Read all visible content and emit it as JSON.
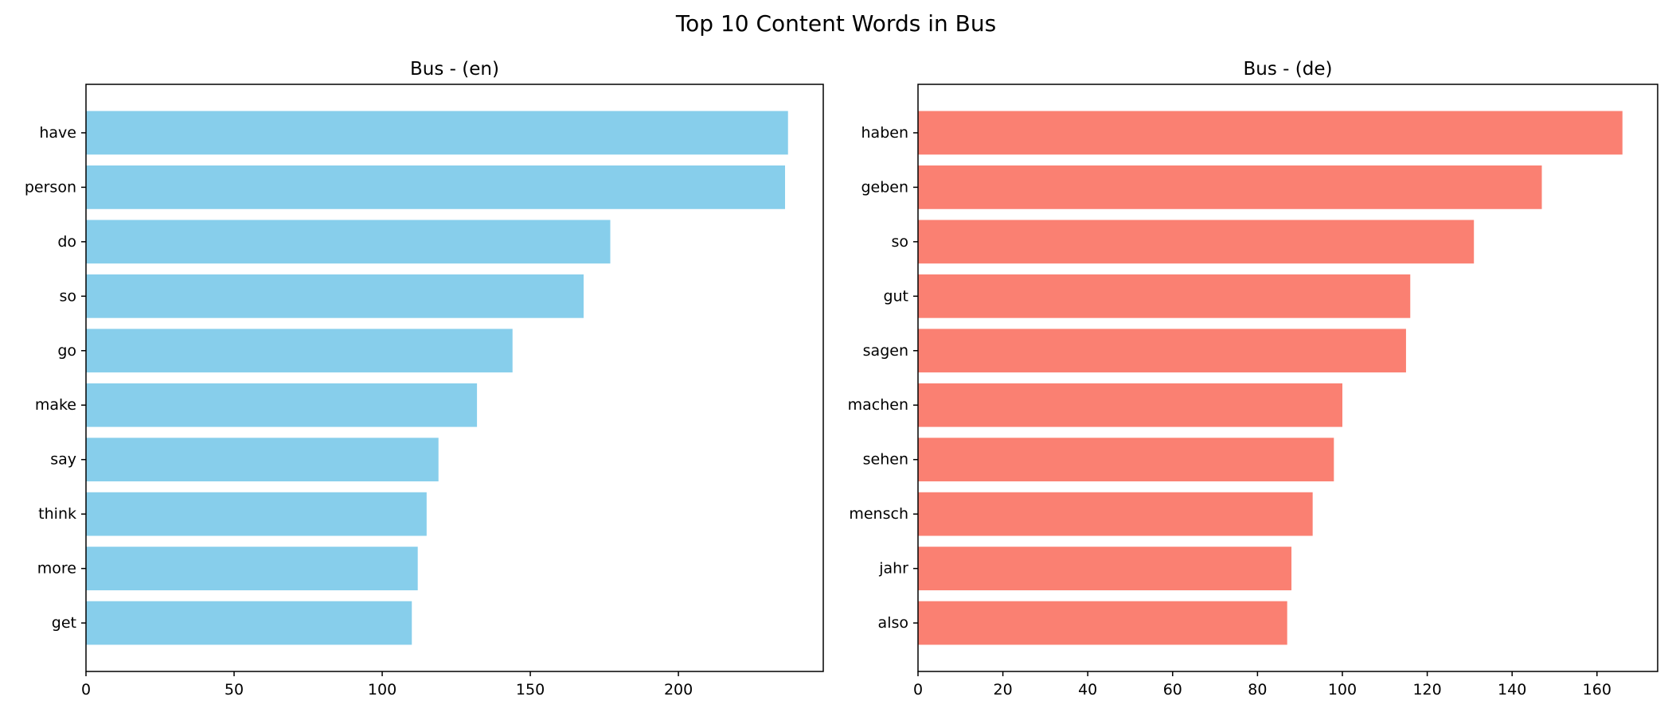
{
  "figure": {
    "title": "Top 10 Content Words in Bus"
  },
  "chart_data": [
    {
      "type": "bar",
      "orientation": "horizontal",
      "title": "Bus - (en)",
      "xlabel": "",
      "ylabel": "",
      "categories": [
        "have",
        "person",
        "do",
        "so",
        "go",
        "make",
        "say",
        "think",
        "more",
        "get"
      ],
      "values": [
        237,
        236,
        177,
        168,
        144,
        132,
        119,
        115,
        112,
        110
      ],
      "xlim": [
        0,
        248.9
      ],
      "xticks": [
        0,
        50,
        100,
        150,
        200
      ],
      "color": "#87CEEB",
      "grid": false
    },
    {
      "type": "bar",
      "orientation": "horizontal",
      "title": "Bus - (de)",
      "xlabel": "",
      "ylabel": "",
      "categories": [
        "haben",
        "geben",
        "so",
        "gut",
        "sagen",
        "machen",
        "sehen",
        "mensch",
        "jahr",
        "also"
      ],
      "values": [
        166,
        147,
        131,
        116,
        115,
        100,
        98,
        93,
        88,
        87
      ],
      "xlim": [
        0,
        174.3
      ],
      "xticks": [
        0,
        20,
        40,
        60,
        80,
        100,
        120,
        140,
        160
      ],
      "color": "#FA8072",
      "grid": false
    }
  ]
}
